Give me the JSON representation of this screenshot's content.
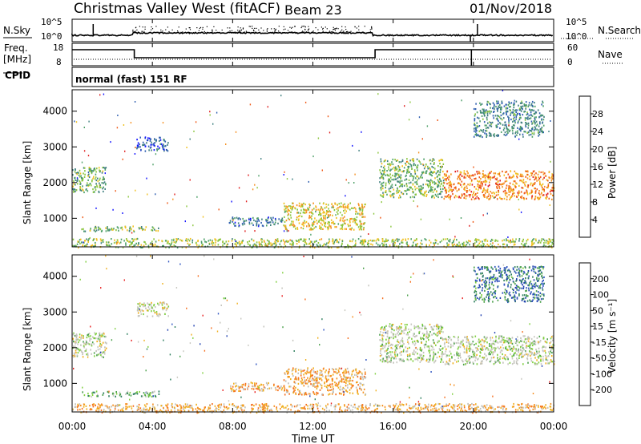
{
  "header": {
    "station": "Christmas Valley West (fitACF)",
    "beam": "Beam 23",
    "date": "01/Nov/2018"
  },
  "top_panels": {
    "nsky_label": "N.Sky",
    "nsearch_label": "N.Search",
    "noise_ticks": [
      "10^5",
      "10^0"
    ],
    "freq_label": "Freq.",
    "freq_unit": "[MHz]",
    "freq_ticks": [
      "18",
      "8"
    ],
    "nave_label": "Nave",
    "nave_ticks": [
      "60",
      "0"
    ],
    "cpid_label": "CPID",
    "cpid_text": "normal (fast) 151 RF",
    "freq_steps": [
      {
        "from": 0,
        "to": 3.1,
        "level": "high"
      },
      {
        "from": 3.1,
        "to": 15.1,
        "level": "low"
      },
      {
        "from": 15.1,
        "to": 19.9,
        "level": "high"
      },
      {
        "from": 19.9,
        "to": 24,
        "level": "high"
      }
    ]
  },
  "chart_data": [
    {
      "type": "heatmap",
      "name": "power",
      "ylabel": "Slant Range [km]",
      "ylim": [
        200,
        4600
      ],
      "yticks": [
        "1000",
        "2000",
        "3000",
        "4000"
      ],
      "colorbar_label": "Power [dB]",
      "colorbar_ticks": [
        "28",
        "24",
        "20",
        "16",
        "12",
        "8",
        "4"
      ],
      "colors": [
        "#1515ff",
        "#2f5fb0",
        "#3f7f7f",
        "#4ea068",
        "#8cc63f",
        "#f0c020",
        "#f59020",
        "#ef5a18",
        "#e02020"
      ],
      "blobs": [
        {
          "t0": 0.0,
          "t1": 1.7,
          "r0": 1750,
          "r1": 2450,
          "level": 0.4
        },
        {
          "t0": 0.4,
          "t1": 4.3,
          "r0": 650,
          "r1": 800,
          "level": 0.45
        },
        {
          "t0": 3.2,
          "t1": 4.8,
          "r0": 2900,
          "r1": 3300,
          "level": 0.2
        },
        {
          "t0": 7.8,
          "t1": 10.5,
          "r0": 800,
          "r1": 1050,
          "level": 0.25
        },
        {
          "t0": 10.5,
          "t1": 14.6,
          "r0": 700,
          "r1": 1450,
          "level": 0.6
        },
        {
          "t0": 15.3,
          "t1": 18.5,
          "r0": 1600,
          "r1": 2700,
          "level": 0.45
        },
        {
          "t0": 18.5,
          "t1": 24.0,
          "r0": 1550,
          "r1": 2350,
          "level": 0.75
        },
        {
          "t0": 20.0,
          "t1": 23.5,
          "r0": 3300,
          "r1": 4300,
          "level": 0.3
        },
        {
          "t0": 0.0,
          "t1": 24.0,
          "r0": 200,
          "r1": 450,
          "level": 0.5
        }
      ]
    },
    {
      "type": "heatmap",
      "name": "velocity",
      "ylabel": "Slant Range [km]",
      "ylim": [
        200,
        4600
      ],
      "yticks": [
        "1000",
        "2000",
        "3000",
        "4000"
      ],
      "colorbar_label": "Velocity [m s⁻¹]",
      "colorbar_ticks": [
        "200",
        "100",
        "50",
        "15",
        "-15",
        "-50",
        "-100",
        "-200"
      ],
      "colors": [
        "#1f3fb0",
        "#2f55c0",
        "#2f7f5f",
        "#4aa04a",
        "#7fcf3f",
        "#c8c8c0",
        "#c0c0b8",
        "#f0b020",
        "#f59020",
        "#f57020",
        "#e82020"
      ],
      "blobs": [
        {
          "t0": 0.0,
          "t1": 1.7,
          "r0": 1750,
          "r1": 2450,
          "level": 0.5
        },
        {
          "t0": 0.4,
          "t1": 4.3,
          "r0": 650,
          "r1": 800,
          "level": 0.35
        },
        {
          "t0": 3.2,
          "t1": 4.8,
          "r0": 2900,
          "r1": 3300,
          "level": 0.55
        },
        {
          "t0": 7.8,
          "t1": 10.5,
          "r0": 800,
          "r1": 1050,
          "level": 0.72
        },
        {
          "t0": 10.5,
          "t1": 14.6,
          "r0": 700,
          "r1": 1450,
          "level": 0.72
        },
        {
          "t0": 15.3,
          "t1": 18.5,
          "r0": 1600,
          "r1": 2700,
          "level": 0.5
        },
        {
          "t0": 18.5,
          "t1": 24.0,
          "r0": 1550,
          "r1": 2350,
          "level": 0.5
        },
        {
          "t0": 20.0,
          "t1": 23.5,
          "r0": 3300,
          "r1": 4300,
          "level": 0.2
        },
        {
          "t0": 0.0,
          "t1": 24.0,
          "r0": 200,
          "r1": 450,
          "level": 0.7
        }
      ]
    }
  ],
  "xaxis": {
    "label": "Time UT",
    "ticks": [
      "00:00",
      "04:00",
      "08:00",
      "12:00",
      "16:00",
      "20:00",
      "00:00"
    ]
  }
}
